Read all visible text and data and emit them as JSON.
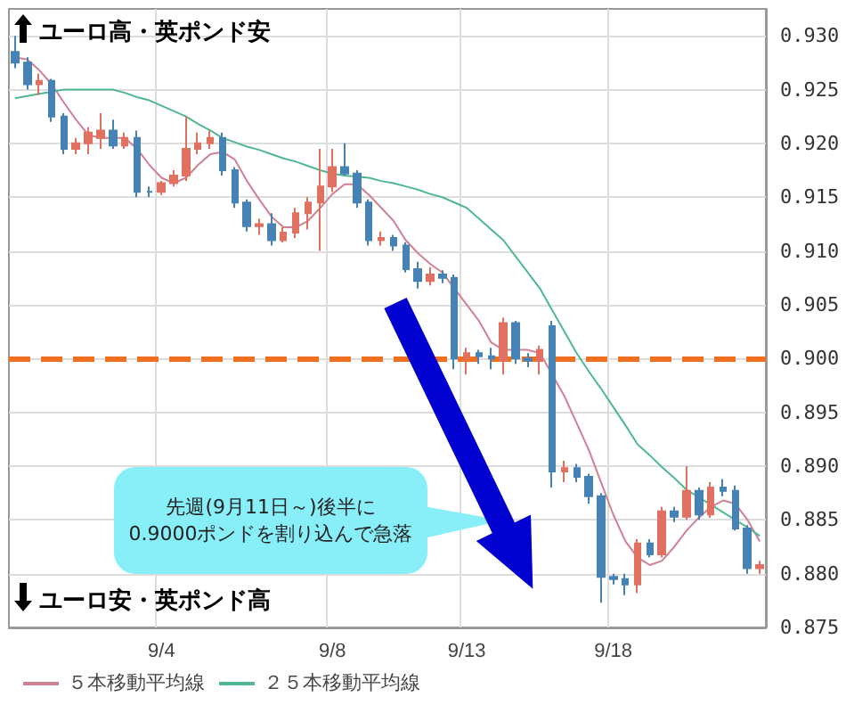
{
  "chart_data": {
    "type": "candlestick",
    "categories": [
      null,
      null,
      null,
      null,
      null,
      null,
      null,
      null,
      null,
      null,
      null,
      null,
      "9/4",
      null,
      null,
      null,
      null,
      null,
      null,
      null,
      null,
      null,
      null,
      null,
      null,
      null,
      "9/8",
      null,
      null,
      null,
      null,
      null,
      null,
      null,
      null,
      null,
      null,
      "9/13",
      null,
      null,
      null,
      null,
      null,
      null,
      null,
      null,
      null,
      null,
      null,
      "9/18",
      null,
      null,
      null,
      null,
      null,
      null,
      null,
      null,
      null,
      null,
      null,
      null
    ],
    "ohlc": [
      [
        0.9285,
        0.93,
        0.927,
        0.9275
      ],
      [
        0.9275,
        0.928,
        0.925,
        0.9255
      ],
      [
        0.9255,
        0.9265,
        0.9245,
        0.9258
      ],
      [
        0.9258,
        0.926,
        0.922,
        0.9225
      ],
      [
        0.9225,
        0.9228,
        0.919,
        0.9195
      ],
      [
        0.9195,
        0.9205,
        0.919,
        0.92
      ],
      [
        0.92,
        0.9215,
        0.919,
        0.921
      ],
      [
        0.9205,
        0.9228,
        0.9195,
        0.9212
      ],
      [
        0.9212,
        0.9222,
        0.9195,
        0.9198
      ],
      [
        0.9198,
        0.921,
        0.9195,
        0.9205
      ],
      [
        0.9205,
        0.9212,
        0.915,
        0.9155
      ],
      [
        0.9155,
        0.916,
        0.915,
        0.9155
      ],
      [
        0.9155,
        0.9165,
        0.9152,
        0.9163
      ],
      [
        0.9163,
        0.9175,
        0.916,
        0.917
      ],
      [
        0.917,
        0.9225,
        0.9165,
        0.9195
      ],
      [
        0.9195,
        0.921,
        0.919,
        0.92
      ],
      [
        0.92,
        0.9212,
        0.9195,
        0.9205
      ],
      [
        0.9205,
        0.921,
        0.917,
        0.9175
      ],
      [
        0.9175,
        0.9178,
        0.914,
        0.9145
      ],
      [
        0.9145,
        0.9148,
        0.9118,
        0.9123
      ],
      [
        0.9123,
        0.913,
        0.9115,
        0.9125
      ],
      [
        0.9125,
        0.9135,
        0.9105,
        0.911
      ],
      [
        0.911,
        0.9122,
        0.9108,
        0.9117
      ],
      [
        0.9117,
        0.914,
        0.9112,
        0.9135
      ],
      [
        0.9135,
        0.915,
        0.912,
        0.9145
      ],
      [
        0.9145,
        0.9195,
        0.91,
        0.916
      ],
      [
        0.916,
        0.9195,
        0.9155,
        0.9178
      ],
      [
        0.9178,
        0.92,
        0.917,
        0.9172
      ],
      [
        0.9172,
        0.9175,
        0.914,
        0.9145
      ],
      [
        0.9145,
        0.9148,
        0.9105,
        0.911
      ],
      [
        0.911,
        0.9118,
        0.9105,
        0.9112
      ],
      [
        0.9112,
        0.9115,
        0.91,
        0.9105
      ],
      [
        0.9105,
        0.9108,
        0.908,
        0.9083
      ],
      [
        0.9083,
        0.909,
        0.9065,
        0.9072
      ],
      [
        0.9072,
        0.9085,
        0.9068,
        0.9078
      ],
      [
        0.9078,
        0.9082,
        0.907,
        0.9075
      ],
      [
        0.9075,
        0.9078,
        0.899,
        0.9
      ],
      [
        0.9,
        0.901,
        0.8985,
        0.9005
      ],
      [
        0.9005,
        0.9008,
        0.8995,
        0.9002
      ],
      [
        0.9002,
        0.901,
        0.899,
        0.9
      ],
      [
        0.8998,
        0.9038,
        0.8985,
        0.9033
      ],
      [
        0.9033,
        0.9035,
        0.8995,
        0.9
      ],
      [
        0.9,
        0.9005,
        0.8992,
        0.8998
      ],
      [
        0.8998,
        0.9012,
        0.8985,
        0.9008
      ],
      [
        0.903,
        0.9035,
        0.888,
        0.8895
      ],
      [
        0.8895,
        0.8905,
        0.8885,
        0.8898
      ],
      [
        0.8898,
        0.8902,
        0.8885,
        0.889
      ],
      [
        0.889,
        0.8893,
        0.8865,
        0.8872
      ],
      [
        0.8872,
        0.8875,
        0.8773,
        0.8797
      ],
      [
        0.8797,
        0.88,
        0.879,
        0.8795
      ],
      [
        0.8795,
        0.88,
        0.878,
        0.879
      ],
      [
        0.879,
        0.8832,
        0.8782,
        0.8828
      ],
      [
        0.8828,
        0.8832,
        0.8815,
        0.8818
      ],
      [
        0.8818,
        0.8862,
        0.8815,
        0.8858
      ],
      [
        0.8858,
        0.8862,
        0.8848,
        0.8853
      ],
      [
        0.8853,
        0.89,
        0.885,
        0.8877
      ],
      [
        0.8877,
        0.888,
        0.885,
        0.8855
      ],
      [
        0.8855,
        0.8885,
        0.8852,
        0.888
      ],
      [
        0.888,
        0.8888,
        0.8872,
        0.8877
      ],
      [
        0.8877,
        0.8882,
        0.884,
        0.8842
      ],
      [
        0.8842,
        0.8845,
        0.88,
        0.8805
      ],
      [
        0.8805,
        0.8812,
        0.88,
        0.8808
      ]
    ],
    "colors": [
      "#4682b4",
      "#4682b4",
      "#e07060",
      "#4682b4",
      "#4682b4",
      "#e07060",
      "#e07060",
      "#e07060",
      "#4682b4",
      "#e07060",
      "#4682b4",
      "#4682b4",
      "#e07060",
      "#e07060",
      "#e07060",
      "#e07060",
      "#e07060",
      "#4682b4",
      "#4682b4",
      "#4682b4",
      "#e07060",
      "#4682b4",
      "#e07060",
      "#e07060",
      "#e07060",
      "#e07060",
      "#e07060",
      "#4682b4",
      "#4682b4",
      "#4682b4",
      "#e07060",
      "#4682b4",
      "#4682b4",
      "#4682b4",
      "#e07060",
      "#4682b4",
      "#4682b4",
      "#e07060",
      "#4682b4",
      "#4682b4",
      "#e07060",
      "#4682b4",
      "#4682b4",
      "#e07060",
      "#4682b4",
      "#e07060",
      "#4682b4",
      "#4682b4",
      "#4682b4",
      "#4682b4",
      "#4682b4",
      "#e07060",
      "#4682b4",
      "#e07060",
      "#4682b4",
      "#e07060",
      "#4682b4",
      "#e07060",
      "#4682b4",
      "#4682b4",
      "#4682b4",
      "#e07060"
    ],
    "series": [
      {
        "type": "line",
        "name": "５本移動平均線",
        "color": "#d08090",
        "values": [
          0.928,
          0.9278,
          0.9268,
          0.9255,
          0.9238,
          0.9222,
          0.9208,
          0.9205,
          0.9205,
          0.9205,
          0.9195,
          0.918,
          0.9168,
          0.9163,
          0.9168,
          0.918,
          0.919,
          0.9192,
          0.9185,
          0.9165,
          0.9148,
          0.9132,
          0.9122,
          0.9122,
          0.9128,
          0.914,
          0.9153,
          0.9162,
          0.9162,
          0.9152,
          0.914,
          0.9128,
          0.911,
          0.9098,
          0.9088,
          0.908,
          0.9065,
          0.905,
          0.9035,
          0.9015,
          0.9008,
          0.9008,
          0.9008,
          0.9005,
          0.8985,
          0.8965,
          0.894,
          0.8915,
          0.8885,
          0.8855,
          0.883,
          0.8815,
          0.8808,
          0.8812,
          0.8825,
          0.884,
          0.8852,
          0.8862,
          0.8868,
          0.8865,
          0.885,
          0.883
        ]
      },
      {
        "type": "line",
        "name": "２５本移動平均線",
        "color": "#50b890",
        "values": [
          0.9242,
          0.9244,
          0.9246,
          0.9248,
          0.925,
          0.925,
          0.925,
          0.925,
          0.925,
          0.9247,
          0.9243,
          0.924,
          0.9235,
          0.923,
          0.9225,
          0.9218,
          0.9212,
          0.9205,
          0.9201,
          0.9197,
          0.9194,
          0.919,
          0.9186,
          0.9183,
          0.9179,
          0.9175,
          0.9172,
          0.917,
          0.9169,
          0.9168,
          0.9165,
          0.9163,
          0.916,
          0.9157,
          0.9153,
          0.915,
          0.9145,
          0.914,
          0.913,
          0.912,
          0.911,
          0.9095,
          0.908,
          0.9065,
          0.9045,
          0.9025,
          0.9005,
          0.8988,
          0.8972,
          0.8955,
          0.8938,
          0.892,
          0.891,
          0.8899,
          0.8889,
          0.8878,
          0.8871,
          0.8864,
          0.8857,
          0.885,
          0.8843,
          0.8835
        ]
      }
    ],
    "ylim": [
      0.875,
      0.9325
    ],
    "yticks": [
      {
        "value": 0.875,
        "label": "0.875"
      },
      {
        "value": 0.88,
        "label": "0.880"
      },
      {
        "value": 0.885,
        "label": "0.885"
      },
      {
        "value": 0.89,
        "label": "0.890"
      },
      {
        "value": 0.895,
        "label": "0.895"
      },
      {
        "value": 0.9,
        "label": "0.900"
      },
      {
        "value": 0.905,
        "label": "0.905"
      },
      {
        "value": 0.91,
        "label": "0.910"
      },
      {
        "value": 0.915,
        "label": "0.915"
      },
      {
        "value": 0.92,
        "label": "0.920"
      },
      {
        "value": 0.925,
        "label": "0.925"
      },
      {
        "value": 0.93,
        "label": "0.930"
      }
    ],
    "ref_lines": [
      {
        "axis": "y",
        "value": 0.9,
        "color": "#f07020",
        "line_style": "dashed"
      }
    ],
    "annotations": [
      "ユーロ高・英ポンド安",
      "ユーロ安・英ポンド高",
      "先週(9月11日～)後半に\n0.9000ポンドを割り込んで急落"
    ],
    "grid": true,
    "legend": "bottom left",
    "marker": "none"
  }
}
